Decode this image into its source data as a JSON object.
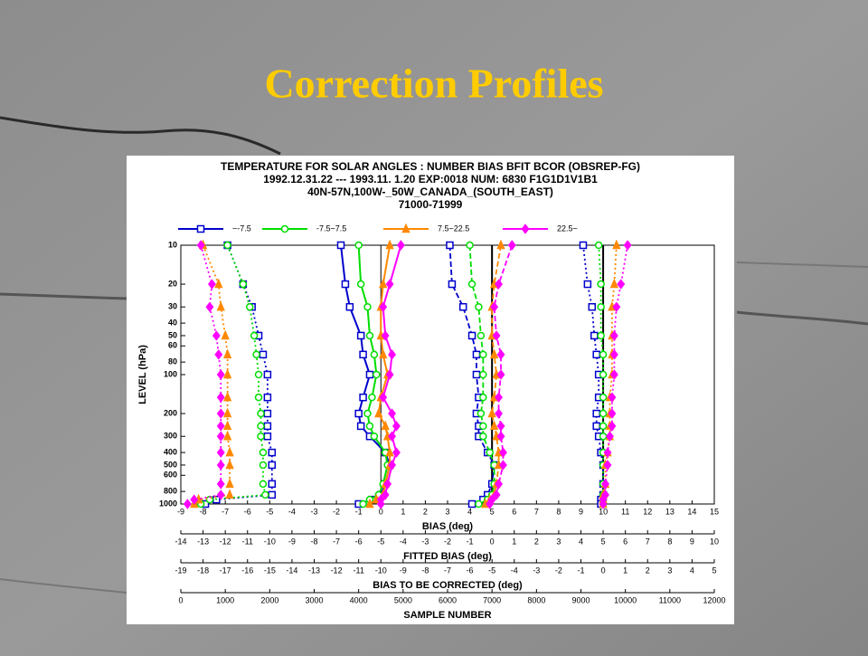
{
  "slide_title": "Correction Profiles",
  "chart_data": {
    "type": "line",
    "title_lines": [
      "TEMPERATURE FOR SOLAR ANGLES : NUMBER BIAS BFIT BCOR  (OBSREP-FG)",
      "1992.12.31.22 --- 1993.11. 1.20   EXP:0018    NUM:   6830   F1G1D1V1B1",
      "40N-57N,100W-_50W_CANADA_(SOUTH_EAST)",
      "71000-71999"
    ],
    "ylabel": "LEVEL (hPa)",
    "log_scale": true,
    "ylim": [
      1000,
      10
    ],
    "yticks": [
      10,
      20,
      30,
      40,
      50,
      60,
      80,
      100,
      200,
      300,
      400,
      500,
      600,
      800,
      1000
    ],
    "levels": [
      10,
      20,
      30,
      50,
      70,
      100,
      150,
      200,
      250,
      300,
      400,
      500,
      700,
      850,
      925,
      1000
    ],
    "vlines": [
      0,
      5,
      10
    ],
    "x_axes": {
      "bias": {
        "label": "BIAS (deg)",
        "xlim": [
          -9,
          15
        ],
        "xticks": [
          -9,
          -8,
          -7,
          -6,
          -5,
          -4,
          -3,
          -2,
          -1,
          0,
          1,
          2,
          3,
          4,
          5,
          6,
          7,
          8,
          9,
          10,
          11,
          12,
          13,
          14,
          15
        ]
      },
      "fitted_bias": {
        "label": "FITTED BIAS (deg)",
        "xlim": [
          -14,
          10
        ],
        "xticks": [
          -14,
          -13,
          -12,
          -11,
          -10,
          -9,
          -8,
          -7,
          -6,
          -5,
          -4,
          -3,
          -2,
          -1,
          0,
          1,
          2,
          3,
          4,
          5,
          6,
          7,
          8,
          9,
          10
        ]
      },
      "bias_corrected": {
        "label": "BIAS TO BE CORRECTED (deg)",
        "xlim": [
          -19,
          5
        ],
        "xticks": [
          -19,
          -18,
          -17,
          -16,
          -15,
          -14,
          -13,
          -12,
          -11,
          -10,
          -9,
          -8,
          -7,
          -6,
          -5,
          -4,
          -3,
          -2,
          -1,
          0,
          1,
          2,
          3,
          4,
          5
        ]
      },
      "sample_number": {
        "label": "SAMPLE NUMBER",
        "xlim": [
          0,
          12000
        ],
        "xticks": [
          0,
          1000,
          2000,
          3000,
          4000,
          5000,
          6000,
          7000,
          8000,
          9000,
          10000,
          11000,
          12000
        ]
      }
    },
    "series": [
      {
        "name": "~-7.5",
        "color": "#0000cc",
        "marker": "square",
        "values": {
          "sample_number": [
            1050,
            1400,
            1600,
            1750,
            1850,
            1950,
            1950,
            1950,
            1950,
            1950,
            2050,
            2050,
            2050,
            2050,
            800,
            550
          ],
          "bias": [
            -1.8,
            -1.6,
            -1.4,
            -0.9,
            -0.8,
            -0.5,
            -0.8,
            -1.0,
            -0.9,
            -0.5,
            0.2,
            0.4,
            0.2,
            0.0,
            -0.4,
            -1.0
          ],
          "fitted_bias": [
            -1.9,
            -1.8,
            -1.3,
            -0.9,
            -0.7,
            -0.7,
            -0.6,
            -0.7,
            -0.6,
            -0.6,
            -0.2,
            0.1,
            0.0,
            -0.2,
            -0.4,
            -0.9
          ],
          "bias_corrected": [
            -0.9,
            -0.7,
            -0.5,
            -0.4,
            -0.3,
            -0.2,
            -0.2,
            -0.3,
            -0.3,
            -0.2,
            -0.1,
            0.0,
            0.0,
            0.0,
            -0.1,
            -0.1
          ]
        }
      },
      {
        "name": "-7.5~7.5",
        "color": "#00dd00",
        "marker": "circle",
        "values": {
          "sample_number": [
            1050,
            1400,
            1550,
            1650,
            1700,
            1750,
            1750,
            1800,
            1800,
            1800,
            1850,
            1850,
            1850,
            1900,
            650,
            450
          ],
          "bias": [
            -1.0,
            -0.9,
            -0.6,
            -0.5,
            -0.3,
            -0.2,
            -0.4,
            -0.6,
            -0.5,
            -0.3,
            0.2,
            0.3,
            0.1,
            -0.1,
            -0.5,
            -0.8
          ],
          "fitted_bias": [
            -1.0,
            -0.9,
            -0.6,
            -0.5,
            -0.4,
            -0.4,
            -0.4,
            -0.5,
            -0.4,
            -0.4,
            -0.1,
            0.1,
            0.1,
            0.0,
            -0.2,
            -0.6
          ],
          "bias_corrected": [
            -0.2,
            -0.1,
            -0.1,
            -0.1,
            0.0,
            0.0,
            0.0,
            0.0,
            0.0,
            0.0,
            0.0,
            0.0,
            0.0,
            0.0,
            0.0,
            0.0
          ]
        }
      },
      {
        "name": "7.5~22.5",
        "color": "#ff8800",
        "marker": "triangle",
        "values": {
          "sample_number": [
            500,
            850,
            900,
            1000,
            1050,
            1050,
            1050,
            1050,
            1050,
            1050,
            1100,
            1100,
            1100,
            1100,
            400,
            300
          ],
          "bias": [
            0.4,
            0.1,
            0.0,
            0.0,
            0.1,
            0.3,
            0.0,
            -0.1,
            0.2,
            0.3,
            0.4,
            0.4,
            0.2,
            0.1,
            -0.2,
            -0.5
          ],
          "fitted_bias": [
            0.4,
            0.1,
            0.0,
            0.0,
            0.1,
            0.2,
            0.1,
            0.0,
            0.1,
            0.2,
            0.3,
            0.3,
            0.2,
            0.1,
            -0.1,
            -0.3
          ],
          "bias_corrected": [
            0.6,
            0.5,
            0.4,
            0.4,
            0.4,
            0.4,
            0.3,
            0.3,
            0.3,
            0.3,
            0.2,
            0.1,
            0.1,
            0.0,
            0.0,
            0.0
          ]
        }
      },
      {
        "name": "22.5~",
        "color": "#ff00ff",
        "marker": "diamond",
        "values": {
          "sample_number": [
            450,
            700,
            650,
            800,
            850,
            900,
            900,
            900,
            900,
            900,
            900,
            900,
            900,
            900,
            300,
            150
          ],
          "bias": [
            0.9,
            0.4,
            0.1,
            0.2,
            0.5,
            0.4,
            0.1,
            0.5,
            0.7,
            0.5,
            0.7,
            0.5,
            0.3,
            0.2,
            0.0,
            0.0
          ],
          "fitted_bias": [
            0.9,
            0.3,
            0.1,
            0.2,
            0.4,
            0.4,
            0.3,
            0.3,
            0.4,
            0.4,
            0.5,
            0.5,
            0.3,
            0.2,
            0.0,
            -0.1
          ],
          "bias_corrected": [
            1.1,
            0.8,
            0.6,
            0.5,
            0.5,
            0.5,
            0.4,
            0.4,
            0.4,
            0.3,
            0.2,
            0.2,
            0.1,
            0.1,
            0.0,
            0.0
          ]
        }
      }
    ]
  }
}
